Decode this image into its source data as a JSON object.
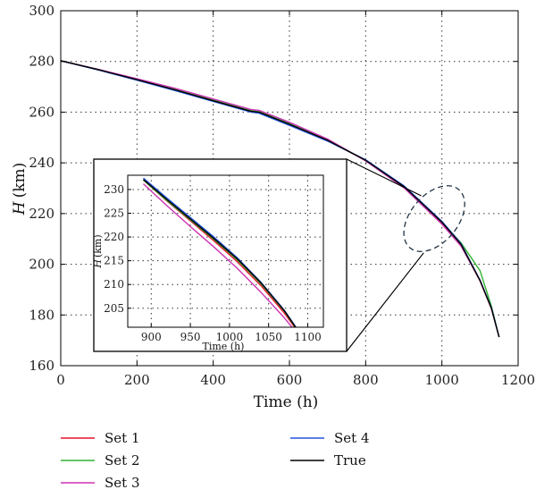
{
  "chart_data": {
    "type": "line",
    "title": "",
    "xlabel": "Time (h)",
    "ylabel_symbol": "H",
    "ylabel_unit": "(km)",
    "xlim": [
      0,
      1200
    ],
    "ylim": [
      160,
      300
    ],
    "xticks": [
      0,
      200,
      400,
      600,
      800,
      1000,
      1200
    ],
    "yticks": [
      160,
      180,
      200,
      220,
      240,
      260,
      280,
      300
    ],
    "grid": true,
    "legend_position": "bottom",
    "series": [
      {
        "name": "Set 1",
        "color": "#e8102a",
        "x": [
          0,
          100,
          200,
          300,
          400,
          500,
          520,
          600,
          700,
          800,
          900,
          950,
          1000,
          1050,
          1100,
          1130,
          1150
        ],
        "y": [
          280.3,
          276.8,
          273,
          269,
          264.7,
          260.5,
          260.2,
          255.5,
          249,
          240.9,
          230.5,
          223.4,
          216.3,
          207.6,
          193.5,
          182.5,
          171.3
        ]
      },
      {
        "name": "Set 2",
        "color": "#33b233",
        "x": [
          0,
          100,
          200,
          300,
          400,
          500,
          520,
          600,
          700,
          800,
          900,
          950,
          1000,
          1050,
          1100,
          1130,
          1150
        ],
        "y": [
          280.3,
          276.8,
          273,
          269,
          264.8,
          260.6,
          260.2,
          255.6,
          249,
          241,
          230.6,
          223.6,
          216.6,
          208.5,
          197.5,
          183.5,
          171.3
        ]
      },
      {
        "name": "Set 3",
        "color": "#cc33b2",
        "x": [
          0,
          100,
          200,
          300,
          400,
          500,
          520,
          600,
          700,
          800,
          900,
          950,
          1000,
          1050,
          1100,
          1130,
          1150
        ],
        "y": [
          280.3,
          276.8,
          273.2,
          269.4,
          265.2,
          261,
          260.7,
          256,
          249.4,
          240.8,
          230.2,
          223,
          215.8,
          207.2,
          193.7,
          182.7,
          171.3
        ]
      },
      {
        "name": "Set 4",
        "color": "#2255dd",
        "x": [
          0,
          100,
          200,
          300,
          400,
          500,
          520,
          600,
          700,
          800,
          900,
          950,
          1000,
          1050,
          1100,
          1130,
          1150
        ],
        "y": [
          280.3,
          276.6,
          272.6,
          268.5,
          264.2,
          260,
          259.6,
          254.8,
          248.6,
          241.2,
          231,
          224,
          216.9,
          208.2,
          193.8,
          182.8,
          171.3
        ]
      },
      {
        "name": "True",
        "color": "#000000",
        "x": [
          0,
          100,
          200,
          300,
          400,
          500,
          520,
          600,
          700,
          800,
          900,
          950,
          1000,
          1050,
          1100,
          1130,
          1150
        ],
        "y": [
          280.3,
          276.7,
          272.8,
          268.8,
          264.5,
          260.3,
          260,
          255.2,
          248.9,
          241,
          230.7,
          223.7,
          216.6,
          207.9,
          193.6,
          182.6,
          171.3
        ]
      }
    ],
    "inset": {
      "xlim": [
        870,
        1120
      ],
      "ylim": [
        201,
        233
      ],
      "xticks": [
        900,
        950,
        1000,
        1050,
        1100
      ],
      "yticks": [
        205,
        210,
        215,
        220,
        225,
        230
      ],
      "xlabel": "Time (h)",
      "ylabel_symbol": "H",
      "ylabel_unit": "(km)",
      "grid": true,
      "series": [
        {
          "name": "Set 1",
          "color": "#e8102a",
          "x": [
            890,
            920,
            950,
            980,
            1010,
            1040,
            1070,
            1090
          ],
          "y": [
            232,
            227.6,
            223.4,
            219.2,
            214.8,
            209.8,
            204,
            199.5
          ]
        },
        {
          "name": "Set 2",
          "color": "#33b233",
          "x": [
            890,
            920,
            950,
            980,
            1010,
            1040,
            1070,
            1090
          ],
          "y": [
            232,
            227.7,
            223.6,
            219.5,
            215.2,
            210.2,
            204.4,
            199.6
          ]
        },
        {
          "name": "Set 3",
          "color": "#cc33b2",
          "x": [
            890,
            920,
            950,
            980,
            1010,
            1040,
            1070,
            1090
          ],
          "y": [
            231.2,
            226.6,
            222.2,
            217.9,
            213.4,
            208.4,
            203,
            199
          ]
        },
        {
          "name": "Set 4",
          "color": "#2255dd",
          "x": [
            890,
            920,
            950,
            980,
            1010,
            1040,
            1070,
            1090
          ],
          "y": [
            232.4,
            228.2,
            224.1,
            220,
            215.6,
            210.5,
            204.6,
            199.8
          ]
        },
        {
          "name": "True",
          "color": "#000000",
          "x": [
            890,
            920,
            950,
            980,
            1010,
            1040,
            1070,
            1090
          ],
          "y": [
            232.1,
            227.9,
            223.8,
            219.7,
            215.4,
            210.4,
            204.5,
            199.7
          ]
        }
      ]
    },
    "annotation": {
      "type": "dashed-ellipse",
      "color": "#223344",
      "center": [
        980,
        218
      ],
      "rx_data": 62,
      "ry_data": 15
    }
  }
}
